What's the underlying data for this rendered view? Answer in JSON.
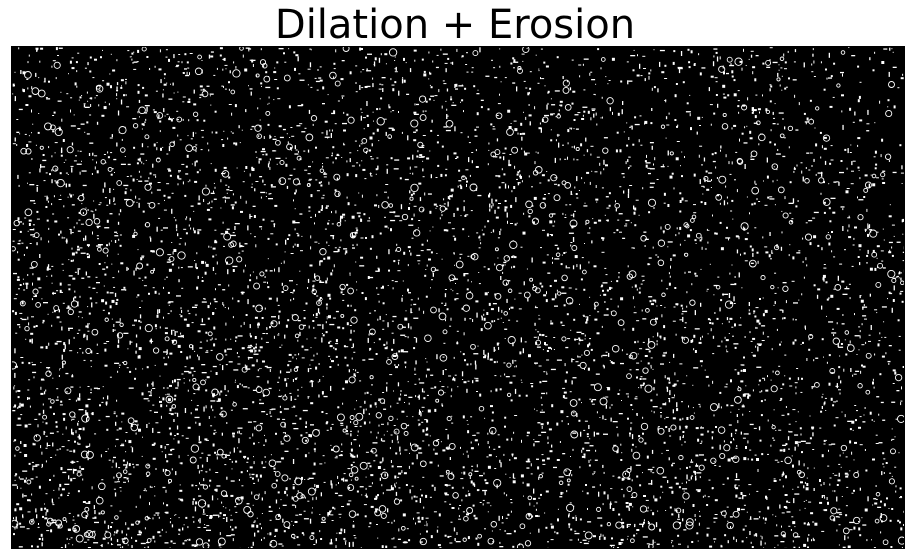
{
  "figure": {
    "title": "Dilation + Erosion"
  },
  "image": {
    "description_name": "binary-morphology-result",
    "background_color": "#000000",
    "foreground_color": "#ffffff"
  }
}
